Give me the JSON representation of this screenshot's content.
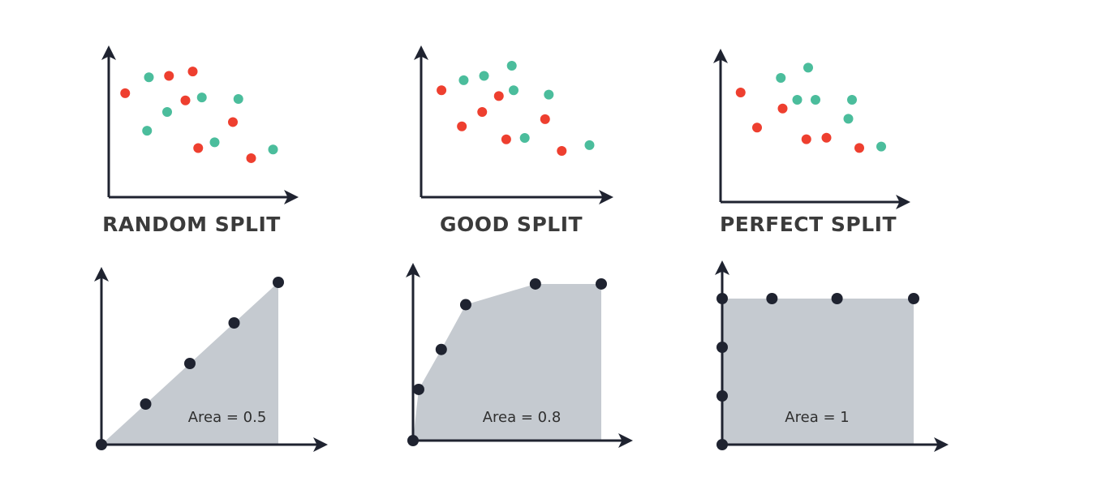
{
  "colors": {
    "class_a": "#ee3f2f",
    "class_b": "#4bbd9c",
    "axis": "#1f2330",
    "roc_fill": "#c5cad0",
    "roc_point": "#1f2330",
    "label_text": "#3b3b3b"
  },
  "panels": [
    {
      "title": "RANDOM SPLIT",
      "scatter": {
        "red": [
          [
            0.09,
            0.72
          ],
          [
            0.33,
            0.84
          ],
          [
            0.46,
            0.87
          ],
          [
            0.42,
            0.67
          ],
          [
            0.68,
            0.52
          ],
          [
            0.49,
            0.34
          ],
          [
            0.78,
            0.27
          ]
        ],
        "teal": [
          [
            0.22,
            0.83
          ],
          [
            0.51,
            0.69
          ],
          [
            0.32,
            0.59
          ],
          [
            0.71,
            0.68
          ],
          [
            0.21,
            0.46
          ],
          [
            0.58,
            0.38
          ],
          [
            0.9,
            0.33
          ]
        ]
      },
      "roc": {
        "points": [
          [
            0,
            0
          ],
          [
            0.25,
            0.25
          ],
          [
            0.5,
            0.5
          ],
          [
            0.75,
            0.75
          ],
          [
            1,
            1
          ]
        ],
        "area_text": "Area = 0.5"
      }
    },
    {
      "title": "GOOD SPLIT",
      "scatter": {
        "red": [
          [
            0.11,
            0.74
          ],
          [
            0.42,
            0.7
          ],
          [
            0.33,
            0.59
          ],
          [
            0.22,
            0.49
          ],
          [
            0.67,
            0.54
          ],
          [
            0.46,
            0.4
          ],
          [
            0.76,
            0.32
          ]
        ],
        "teal": [
          [
            0.23,
            0.81
          ],
          [
            0.34,
            0.84
          ],
          [
            0.49,
            0.91
          ],
          [
            0.5,
            0.74
          ],
          [
            0.69,
            0.71
          ],
          [
            0.56,
            0.41
          ],
          [
            0.91,
            0.36
          ]
        ]
      },
      "roc": {
        "points": [
          [
            0,
            0
          ],
          [
            0.03,
            0.32
          ],
          [
            0.15,
            0.57
          ],
          [
            0.28,
            0.85
          ],
          [
            0.65,
            0.98
          ],
          [
            1,
            0.98
          ]
        ],
        "area_text": "Area = 0.8"
      }
    },
    {
      "title": "PERFECT SPLIT",
      "scatter": {
        "red": [
          [
            0.11,
            0.75
          ],
          [
            0.2,
            0.51
          ],
          [
            0.34,
            0.64
          ],
          [
            0.47,
            0.43
          ],
          [
            0.58,
            0.44
          ],
          [
            0.76,
            0.37
          ]
        ],
        "teal": [
          [
            0.33,
            0.85
          ],
          [
            0.48,
            0.92
          ],
          [
            0.42,
            0.7
          ],
          [
            0.52,
            0.7
          ],
          [
            0.72,
            0.7
          ],
          [
            0.7,
            0.57
          ],
          [
            0.88,
            0.38
          ]
        ]
      },
      "roc": {
        "points": [
          [
            0,
            0
          ],
          [
            0,
            0.3
          ],
          [
            0,
            0.6
          ],
          [
            0,
            0.9
          ],
          [
            0.26,
            0.9
          ],
          [
            0.6,
            0.9
          ],
          [
            1,
            0.9
          ]
        ],
        "area_text": "Area = 1"
      }
    }
  ]
}
